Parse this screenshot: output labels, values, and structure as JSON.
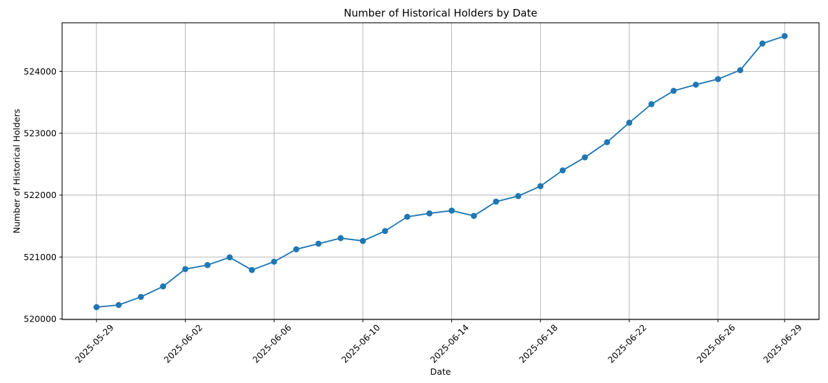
{
  "figure": {
    "title": "Number of Historical Holders by Date",
    "xlabel": "Date",
    "ylabel": "Number of Historical Holders"
  },
  "chart_data": {
    "type": "line",
    "title": "Number of Historical Holders by Date",
    "xlabel": "Date",
    "ylabel": "Number of Historical Holders",
    "x": [
      "2025-05-29",
      "2025-05-30",
      "2025-05-31",
      "2025-06-01",
      "2025-06-02",
      "2025-06-03",
      "2025-06-04",
      "2025-06-05",
      "2025-06-06",
      "2025-06-07",
      "2025-06-08",
      "2025-06-09",
      "2025-06-10",
      "2025-06-11",
      "2025-06-12",
      "2025-06-13",
      "2025-06-14",
      "2025-06-15",
      "2025-06-16",
      "2025-06-17",
      "2025-06-18",
      "2025-06-19",
      "2025-06-20",
      "2025-06-21",
      "2025-06-22",
      "2025-06-23",
      "2025-06-24",
      "2025-06-25",
      "2025-06-26",
      "2025-06-27",
      "2025-06-28",
      "2025-06-29"
    ],
    "series": [
      {
        "name": "Number of Historical Holders",
        "values": [
          520190,
          520225,
          520355,
          520525,
          520805,
          520870,
          520995,
          520790,
          520925,
          521125,
          521215,
          521305,
          521260,
          521420,
          521650,
          521705,
          521750,
          521665,
          521895,
          521985,
          522145,
          522400,
          522610,
          522855,
          523170,
          523470,
          523685,
          523785,
          523875,
          524020,
          524450,
          524570
        ]
      }
    ],
    "x_tick_labels": [
      "2025-05-29",
      "2025-06-02",
      "2025-06-06",
      "2025-06-10",
      "2025-06-14",
      "2025-06-18",
      "2025-06-22",
      "2025-06-26",
      "2025-06-29"
    ],
    "y_ticks": [
      520000,
      521000,
      522000,
      523000,
      524000
    ],
    "ylim": [
      519990,
      524785
    ],
    "grid": true,
    "legend_position": "none",
    "line_color": "#1f77b4",
    "marker": "o",
    "grid_color": "#b0b0b0",
    "spine_color": "#000000",
    "text_color": "#000000",
    "background": "#ffffff"
  }
}
